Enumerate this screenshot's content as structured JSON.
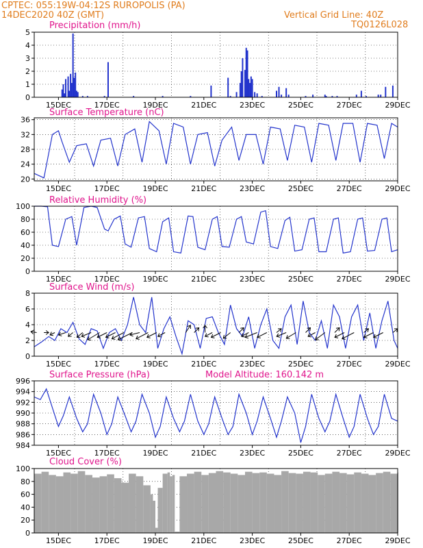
{
  "header": {
    "line1": "CPTEC:   055:19W-04:12S   RUROPOLIS (PA)",
    "line2": "14DEC2020 40Z (GMT)",
    "grid_note": "Vertical Grid Line: 40Z",
    "code": "TQ0126L028"
  },
  "colors": {
    "header": "#e07c1c",
    "panel_title": "#e0148c",
    "series": "#2233cc",
    "cloud": "#a8a8a8",
    "grid": "#000000"
  },
  "x_axis": {
    "tick_labels": [
      "15DEC",
      "17DEC",
      "19DEC",
      "21DEC",
      "23DEC",
      "25DEC",
      "27DEC",
      "29DEC"
    ],
    "range_days": [
      14.0,
      29.0
    ]
  },
  "chart_data": [
    {
      "id": "precip",
      "type": "bar",
      "title": "Precipitation (mm/h)",
      "ylim": [
        0,
        5
      ],
      "yticks": [
        0,
        1,
        2,
        3,
        4,
        5
      ],
      "grid": true,
      "x": [
        15.15,
        15.2,
        15.25,
        15.3,
        15.4,
        15.45,
        15.5,
        15.55,
        15.6,
        15.65,
        15.7,
        15.75,
        15.8,
        16.0,
        16.2,
        16.9,
        17.05,
        18.1,
        19.3,
        20.45,
        21.3,
        22.0,
        22.1,
        22.35,
        22.5,
        22.55,
        22.6,
        22.7,
        22.75,
        22.8,
        22.85,
        22.9,
        22.95,
        23.0,
        23.1,
        23.2,
        23.4,
        24.0,
        24.1,
        24.2,
        24.4,
        24.5,
        25.2,
        25.5,
        26.0,
        26.05,
        26.3,
        26.5,
        27.3,
        27.5,
        27.7,
        28.2,
        28.3,
        28.5,
        28.8
      ],
      "values": [
        0.6,
        1.0,
        0.3,
        1.4,
        1.6,
        0.5,
        1.8,
        1.1,
        4.9,
        1.5,
        1.9,
        0.5,
        0.4,
        0.1,
        0.1,
        0.1,
        2.7,
        0.1,
        0.1,
        0.1,
        0.9,
        1.5,
        0.1,
        0.4,
        1.1,
        2.0,
        3.0,
        2.1,
        3.8,
        3.6,
        1.4,
        1.1,
        1.6,
        1.4,
        0.4,
        0.3,
        0.1,
        0.5,
        0.8,
        0.2,
        0.7,
        0.2,
        0.1,
        0.2,
        0.2,
        0.1,
        0.1,
        0.1,
        0.2,
        0.5,
        0.1,
        0.2,
        0.2,
        0.8,
        0.9
      ]
    },
    {
      "id": "temp",
      "type": "line",
      "title": "Surface Temperature (nC)",
      "ylim": [
        19.5,
        36.5
      ],
      "yticks": [
        20,
        24,
        28,
        32,
        36
      ],
      "grid": true,
      "x": [
        14.0,
        14.4,
        14.75,
        15.0,
        15.15,
        15.45,
        15.75,
        16.15,
        16.45,
        16.75,
        17.15,
        17.45,
        17.75,
        18.15,
        18.45,
        18.75,
        19.15,
        19.45,
        19.75,
        20.15,
        20.45,
        20.75,
        21.15,
        21.45,
        21.75,
        22.15,
        22.45,
        22.75,
        23.15,
        23.45,
        23.75,
        24.15,
        24.45,
        24.75,
        25.15,
        25.45,
        25.75,
        26.15,
        26.45,
        26.75,
        27.15,
        27.45,
        27.75,
        28.15,
        28.45,
        28.75,
        29.0
      ],
      "values": [
        21.5,
        20.3,
        32.0,
        33.0,
        30.0,
        24.5,
        29.0,
        29.5,
        23.5,
        30.5,
        31.0,
        23.5,
        32.0,
        33.5,
        24.5,
        35.5,
        33.0,
        24.0,
        35.0,
        34.0,
        24.0,
        32.0,
        32.5,
        23.5,
        30.5,
        34.0,
        25.0,
        32.0,
        32.0,
        24.0,
        34.0,
        33.5,
        25.0,
        34.5,
        34.0,
        24.5,
        35.0,
        34.5,
        25.0,
        35.0,
        35.0,
        24.5,
        35.0,
        34.5,
        25.5,
        35.0,
        34.0
      ]
    },
    {
      "id": "rh",
      "type": "line",
      "title": "Relative Humidity (%)",
      "ylim": [
        0,
        100
      ],
      "yticks": [
        0,
        20,
        40,
        60,
        80,
        100
      ],
      "grid": true,
      "x": [
        14.0,
        14.3,
        14.55,
        14.75,
        15.0,
        15.3,
        15.55,
        15.75,
        16.05,
        16.35,
        16.6,
        16.9,
        17.05,
        17.3,
        17.55,
        17.75,
        18.0,
        18.3,
        18.55,
        18.75,
        19.05,
        19.3,
        19.55,
        19.75,
        20.05,
        20.35,
        20.55,
        20.75,
        21.05,
        21.35,
        21.55,
        21.75,
        22.05,
        22.35,
        22.55,
        22.75,
        23.05,
        23.35,
        23.55,
        23.75,
        24.05,
        24.35,
        24.55,
        24.75,
        25.05,
        25.35,
        25.55,
        25.75,
        26.05,
        26.35,
        26.55,
        26.75,
        27.05,
        27.35,
        27.55,
        27.75,
        28.05,
        28.35,
        28.55,
        28.75,
        29.0
      ],
      "values": [
        100,
        100,
        99,
        40,
        38,
        80,
        84,
        40,
        98,
        100,
        98,
        65,
        62,
        80,
        85,
        42,
        37,
        82,
        84,
        35,
        30,
        76,
        82,
        30,
        28,
        85,
        84,
        37,
        33,
        80,
        84,
        38,
        37,
        80,
        84,
        45,
        42,
        91,
        93,
        38,
        35,
        78,
        83,
        31,
        33,
        80,
        82,
        30,
        30,
        80,
        82,
        28,
        30,
        80,
        82,
        31,
        32,
        80,
        82,
        30,
        33
      ]
    },
    {
      "id": "wind",
      "type": "line",
      "title": "Surface Wind (m/s)",
      "ylim": [
        0,
        8
      ],
      "yticks": [
        0,
        2,
        4,
        6,
        8
      ],
      "grid": true,
      "x": [
        14.0,
        14.3,
        14.6,
        14.85,
        15.1,
        15.35,
        15.6,
        15.85,
        16.1,
        16.35,
        16.6,
        16.85,
        17.1,
        17.35,
        17.6,
        17.85,
        18.1,
        18.35,
        18.6,
        18.85,
        19.1,
        19.35,
        19.6,
        19.85,
        20.1,
        20.35,
        20.6,
        20.85,
        21.1,
        21.35,
        21.6,
        21.85,
        22.1,
        22.35,
        22.6,
        22.85,
        23.1,
        23.35,
        23.6,
        23.85,
        24.1,
        24.35,
        24.6,
        24.85,
        25.1,
        25.35,
        25.6,
        25.85,
        26.1,
        26.35,
        26.6,
        26.85,
        27.1,
        27.35,
        27.6,
        27.85,
        28.1,
        28.35,
        28.6,
        28.85,
        29.0
      ],
      "values": [
        1.2,
        1.8,
        2.5,
        2.0,
        3.5,
        3.0,
        4.3,
        2.2,
        1.5,
        3.5,
        3.2,
        1.0,
        3.0,
        3.5,
        2.0,
        4.0,
        7.5,
        4.0,
        3.0,
        7.5,
        1.0,
        3.5,
        5.0,
        2.5,
        0.3,
        4.5,
        4.0,
        1.0,
        4.8,
        5.0,
        3.0,
        1.5,
        6.5,
        3.5,
        2.5,
        5.0,
        1.0,
        4.0,
        6.0,
        2.0,
        1.0,
        5.0,
        6.5,
        1.5,
        7.0,
        3.0,
        2.0,
        4.5,
        1.0,
        6.5,
        5.0,
        1.0,
        5.0,
        6.5,
        2.0,
        5.5,
        1.0,
        4.5,
        7.0,
        2.0,
        1.0
      ]
    },
    {
      "id": "pres",
      "type": "line",
      "title": "Surface Pressure (hPa)",
      "annotation": "Model Altitude: 160.142 m",
      "ylim": [
        984,
        996
      ],
      "yticks": [
        984,
        986,
        988,
        990,
        992,
        994,
        996
      ],
      "grid": true,
      "x": [
        14.0,
        14.25,
        14.5,
        14.75,
        15.0,
        15.2,
        15.45,
        15.75,
        16.0,
        16.2,
        16.45,
        16.75,
        17.0,
        17.2,
        17.45,
        17.75,
        18.0,
        18.2,
        18.45,
        18.75,
        19.0,
        19.2,
        19.45,
        19.75,
        20.0,
        20.2,
        20.45,
        20.75,
        21.0,
        21.2,
        21.45,
        21.75,
        22.0,
        22.2,
        22.45,
        22.75,
        23.0,
        23.2,
        23.45,
        23.75,
        24.0,
        24.2,
        24.45,
        24.75,
        25.0,
        25.2,
        25.45,
        25.75,
        26.0,
        26.2,
        26.45,
        26.75,
        27.0,
        27.2,
        27.45,
        27.75,
        28.0,
        28.2,
        28.45,
        28.75,
        29.0
      ],
      "values": [
        993.0,
        992.5,
        994.5,
        991.0,
        987.5,
        989.5,
        993.0,
        989.0,
        986.5,
        988.0,
        993.5,
        990.0,
        986.0,
        988.0,
        993.0,
        989.5,
        986.5,
        988.5,
        993.5,
        990.0,
        985.5,
        987.5,
        993.0,
        989.0,
        986.5,
        988.5,
        993.5,
        988.5,
        986.0,
        988.0,
        993.0,
        989.0,
        986.0,
        987.5,
        993.5,
        990.0,
        986.0,
        988.5,
        993.0,
        989.0,
        985.5,
        988.5,
        993.0,
        990.0,
        984.5,
        987.5,
        993.5,
        989.0,
        986.5,
        988.5,
        993.5,
        989.0,
        985.5,
        987.5,
        993.5,
        989.0,
        986.0,
        987.5,
        993.5,
        989.0,
        988.5
      ]
    },
    {
      "id": "cloud",
      "type": "area",
      "title": "Cloud Cover (%)",
      "ylim": [
        0,
        100
      ],
      "yticks": [
        0,
        20,
        40,
        60,
        80,
        100
      ],
      "grid": true,
      "x": [
        14.0,
        14.3,
        14.6,
        14.9,
        15.2,
        15.5,
        15.8,
        16.1,
        16.4,
        16.7,
        17.0,
        17.3,
        17.6,
        17.9,
        18.2,
        18.5,
        18.8,
        18.9,
        19.0,
        19.1,
        19.3,
        19.5,
        19.6,
        19.7,
        19.8,
        20.0,
        20.3,
        20.6,
        20.9,
        21.2,
        21.5,
        21.8,
        22.1,
        22.4,
        22.7,
        23.0,
        23.3,
        23.6,
        23.9,
        24.2,
        24.5,
        24.8,
        25.1,
        25.4,
        25.7,
        26.0,
        26.3,
        26.6,
        26.9,
        27.2,
        27.5,
        27.8,
        28.1,
        28.4,
        28.7,
        29.0
      ],
      "values": [
        92,
        95,
        90,
        88,
        94,
        92,
        96,
        90,
        86,
        88,
        91,
        85,
        78,
        92,
        88,
        74,
        60,
        50,
        8,
        70,
        92,
        94,
        88,
        90,
        2,
        88,
        92,
        95,
        90,
        93,
        96,
        94,
        92,
        90,
        95,
        93,
        94,
        92,
        90,
        96,
        93,
        92,
        95,
        94,
        90,
        92,
        95,
        93,
        91,
        94,
        92,
        90,
        93,
        95,
        92,
        94
      ]
    }
  ],
  "wind_vectors": {
    "x": [
      14.1,
      14.4,
      14.85,
      15.3,
      15.6,
      16.0,
      16.35,
      16.7,
      17.0,
      17.35,
      17.7,
      18.05,
      18.35,
      18.7,
      19.05,
      19.4,
      20.25,
      20.6,
      21.05,
      21.35,
      21.7,
      22.1,
      22.45,
      22.85,
      23.2,
      23.6,
      24.0,
      24.4,
      24.8,
      25.2,
      25.6,
      26.0,
      26.4,
      26.8,
      27.2,
      27.6,
      28.0,
      28.4,
      28.8
    ],
    "u": [
      -1.2,
      1.0,
      -1.0,
      -1.5,
      -1.0,
      -1.2,
      -2.0,
      -2.5,
      -2.0,
      -2.0,
      -2.5,
      -3.0,
      -2.0,
      -2.5,
      -2.0,
      -1.5,
      1.0,
      1.0,
      0.0,
      -1.5,
      -2.0,
      -1.5,
      1.0,
      -1.5,
      -2.5,
      -2.0,
      1.0,
      -2.0,
      -2.0,
      1.0,
      -1.5,
      -2.0,
      1.0,
      -2.0,
      -2.5,
      1.0,
      -2.0,
      -2.0,
      1.0
    ],
    "v": [
      0.2,
      0.0,
      -0.5,
      -0.5,
      -0.8,
      -1.0,
      -0.8,
      -1.5,
      -1.0,
      -1.0,
      -1.3,
      -1.5,
      -0.5,
      -1.3,
      -1.0,
      -0.8,
      1.5,
      1.0,
      1.5,
      -0.8,
      -1.0,
      -1.2,
      1.0,
      -0.8,
      -1.0,
      -1.0,
      0.8,
      -0.8,
      -1.2,
      1.0,
      -0.8,
      -1.5,
      1.0,
      -1.0,
      -1.3,
      0.8,
      -1.0,
      -1.0,
      0.8
    ]
  }
}
